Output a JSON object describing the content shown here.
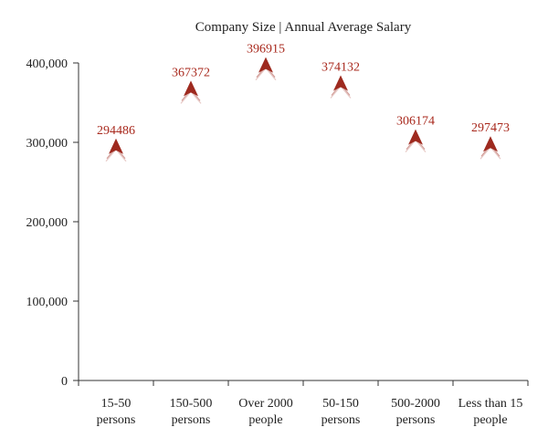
{
  "chart_data": {
    "type": "scatter",
    "title": "Company Size | Annual Average Salary",
    "categories": [
      [
        "15-50",
        "persons"
      ],
      [
        "150-500",
        "persons"
      ],
      [
        "Over 2000",
        "people"
      ],
      [
        "50-150",
        "persons"
      ],
      [
        "500-2000",
        "persons"
      ],
      [
        "Less than 15",
        "people"
      ]
    ],
    "values": [
      294486,
      367372,
      396915,
      374132,
      306174,
      297473
    ],
    "data_labels": [
      "294486",
      "367372",
      "396915",
      "374132",
      "306174",
      "297473"
    ],
    "ylim": [
      0,
      400000
    ],
    "yticks": [
      0,
      100000,
      200000,
      300000,
      400000
    ],
    "ytick_labels": [
      "0",
      "100,000",
      "200,000",
      "300,000",
      "400,000"
    ],
    "xlabel": "",
    "ylabel": "",
    "marker": "triangle",
    "grid": false,
    "legend": "none",
    "colors": {
      "marker": "#9e2a1f",
      "label": "#a8281c",
      "axis": "#333333",
      "text": "#222222"
    }
  }
}
